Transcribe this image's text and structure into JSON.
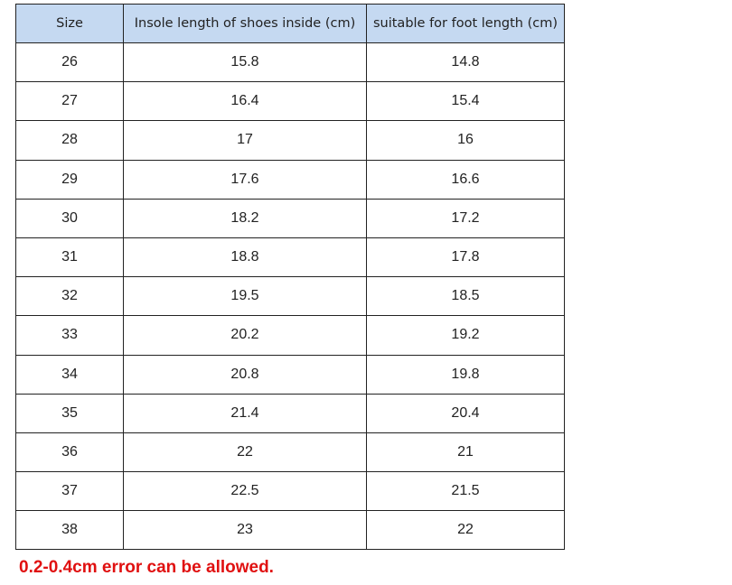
{
  "table": {
    "headers": [
      "Size",
      "Insole length of shoes inside (cm)",
      "suitable for foot length (cm)"
    ],
    "rows": [
      [
        "26",
        "15.8",
        "14.8"
      ],
      [
        "27",
        "16.4",
        "15.4"
      ],
      [
        "28",
        "17",
        "16"
      ],
      [
        "29",
        "17.6",
        "16.6"
      ],
      [
        "30",
        "18.2",
        "17.2"
      ],
      [
        "31",
        "18.8",
        "17.8"
      ],
      [
        "32",
        "19.5",
        "18.5"
      ],
      [
        "33",
        "20.2",
        "19.2"
      ],
      [
        "34",
        "20.8",
        "19.8"
      ],
      [
        "35",
        "21.4",
        "20.4"
      ],
      [
        "36",
        "22",
        "21"
      ],
      [
        "37",
        "22.5",
        "21.5"
      ],
      [
        "38",
        "23",
        "22"
      ]
    ]
  },
  "note": "0.2-0.4cm error can be allowed.",
  "colors": {
    "header_bg": "#c5d9f1",
    "note": "#e01010"
  }
}
